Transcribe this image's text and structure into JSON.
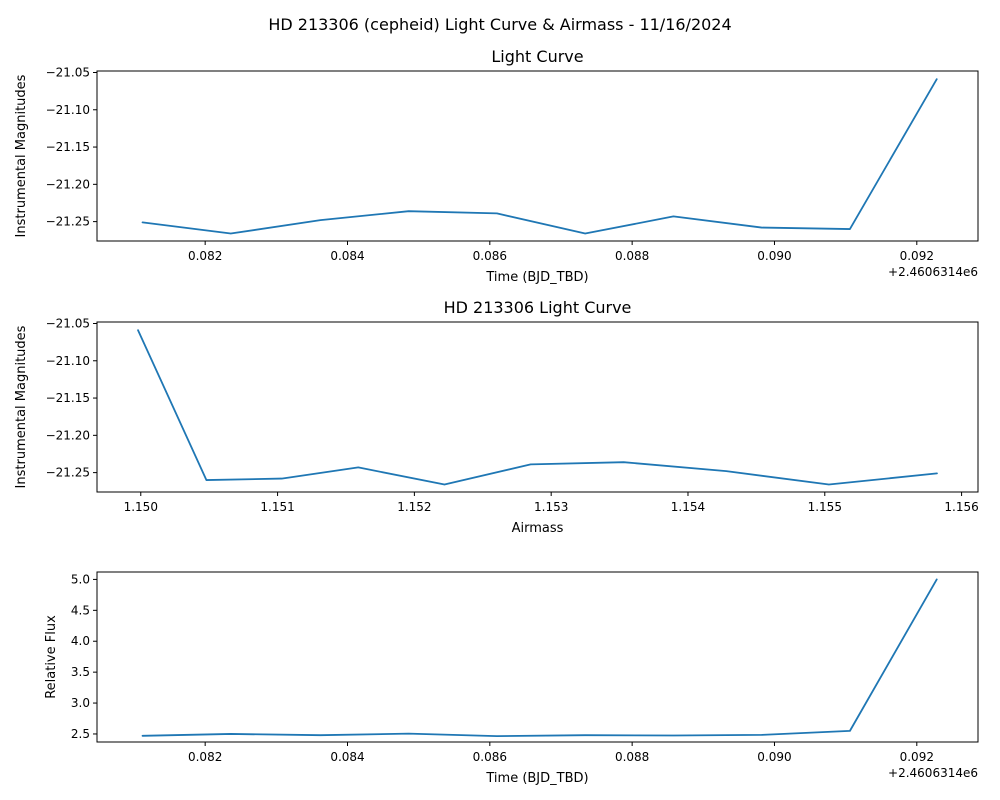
{
  "figure": {
    "suptitle": "HD 213306 (cepheid) Light Curve & Airmass - 11/16/2024"
  },
  "colors": {
    "line": "#1f77b4"
  },
  "chart_data": [
    {
      "type": "line",
      "title": "Light Curve",
      "xlabel": "Time (BJD_TBD)",
      "ylabel": "Instrumental Magnitudes",
      "offset_label": "+2.4606314e6",
      "xlim": [
        0.08048,
        0.09286
      ],
      "ylim": [
        -21.276,
        -21.048
      ],
      "xticks": [
        0.082,
        0.084,
        0.086,
        0.088,
        0.09,
        0.092
      ],
      "xtick_labels": [
        "0.082",
        "0.084",
        "0.086",
        "0.088",
        "0.090",
        "0.092"
      ],
      "yticks": [
        -21.25,
        -21.2,
        -21.15,
        -21.1,
        -21.05
      ],
      "ytick_labels": [
        "−21.25",
        "−21.20",
        "−21.15",
        "−21.10",
        "−21.05"
      ],
      "grid": false,
      "x": [
        0.08112,
        0.08236,
        0.08362,
        0.08486,
        0.0861,
        0.08734,
        0.08858,
        0.08982,
        0.09106,
        0.09228
      ],
      "y": [
        -21.251,
        -21.266,
        -21.248,
        -21.236,
        -21.239,
        -21.266,
        -21.243,
        -21.258,
        -21.26,
        -21.059
      ]
    },
    {
      "type": "line",
      "title": "HD 213306 Light Curve",
      "xlabel": "Airmass",
      "ylabel": "Instrumental Magnitudes",
      "xlim": [
        1.14968,
        1.15612
      ],
      "ylim": [
        -21.276,
        -21.048
      ],
      "xticks": [
        1.15,
        1.151,
        1.152,
        1.153,
        1.154,
        1.155,
        1.156
      ],
      "xtick_labels": [
        "1.150",
        "1.151",
        "1.152",
        "1.153",
        "1.154",
        "1.155",
        "1.156"
      ],
      "yticks": [
        -21.25,
        -21.2,
        -21.15,
        -21.1,
        -21.05
      ],
      "ytick_labels": [
        "−21.25",
        "−21.20",
        "−21.15",
        "−21.10",
        "−21.05"
      ],
      "grid": false,
      "x": [
        1.14998,
        1.15048,
        1.15103,
        1.15159,
        1.15222,
        1.15285,
        1.15353,
        1.15428,
        1.15503,
        1.15582
      ],
      "y": [
        -21.059,
        -21.26,
        -21.258,
        -21.243,
        -21.266,
        -21.239,
        -21.236,
        -21.248,
        -21.266,
        -21.251
      ]
    },
    {
      "type": "line",
      "title": "",
      "xlabel": "Time (BJD_TBD)",
      "ylabel": "Relative Flux",
      "offset_label": "+2.4606314e6",
      "xlim": [
        0.08048,
        0.09286
      ],
      "ylim": [
        2.37,
        5.12
      ],
      "xticks": [
        0.082,
        0.084,
        0.086,
        0.088,
        0.09,
        0.092
      ],
      "xtick_labels": [
        "0.082",
        "0.084",
        "0.086",
        "0.088",
        "0.090",
        "0.092"
      ],
      "yticks": [
        2.5,
        3.0,
        3.5,
        4.0,
        4.5,
        5.0
      ],
      "ytick_labels": [
        "2.5",
        "3.0",
        "3.5",
        "4.0",
        "4.5",
        "5.0"
      ],
      "grid": false,
      "x": [
        0.08112,
        0.08236,
        0.08362,
        0.08486,
        0.0861,
        0.08734,
        0.08858,
        0.08982,
        0.09106,
        0.09228
      ],
      "y": [
        2.47,
        2.5,
        2.48,
        2.505,
        2.465,
        2.48,
        2.475,
        2.485,
        2.55,
        5.0
      ]
    }
  ]
}
